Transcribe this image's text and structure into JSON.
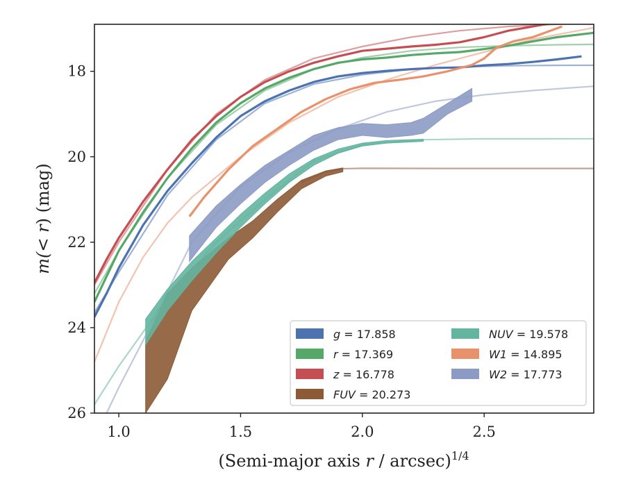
{
  "chart_data": {
    "type": "line",
    "xlabel": "(Semi-major axis r / arcsec)",
    "xlabel_var": "r",
    "xlabel_pre": "(Semi-major axis ",
    "xlabel_post": " / arcsec)",
    "xlabel_exp": "1/4",
    "ylabel_pre": "m(",
    "ylabel_var": "< r",
    "ylabel_post": ") (mag)",
    "xlim": [
      0.9,
      2.95
    ],
    "ylim": [
      26,
      16.9
    ],
    "y_inverted": true,
    "grid": false,
    "legend_position": "lower-right",
    "xticks": [
      1.0,
      1.5,
      2.0,
      2.5
    ],
    "xtick_labels": [
      "1.0",
      "1.5",
      "2.0",
      "2.5"
    ],
    "yticks": [
      18,
      20,
      22,
      24,
      26
    ],
    "ytick_labels": [
      "18",
      "20",
      "22",
      "24",
      "26"
    ],
    "series": [
      {
        "name": "g",
        "legend": "g = 17.858",
        "legend_var": "g",
        "legend_value": "= 17.858",
        "color": "#4c72b0",
        "kind": "line",
        "data": [
          [
            0.9,
            23.75
          ],
          [
            0.95,
            23.2
          ],
          [
            1.0,
            22.6
          ],
          [
            1.1,
            21.6
          ],
          [
            1.2,
            20.8
          ],
          [
            1.3,
            20.15
          ],
          [
            1.4,
            19.55
          ],
          [
            1.5,
            19.05
          ],
          [
            1.6,
            18.7
          ],
          [
            1.7,
            18.45
          ],
          [
            1.8,
            18.25
          ],
          [
            1.9,
            18.12
          ],
          [
            2.0,
            18.04
          ],
          [
            2.1,
            17.99
          ],
          [
            2.2,
            17.95
          ],
          [
            2.3,
            17.92
          ],
          [
            2.4,
            17.91
          ],
          [
            2.5,
            17.86
          ],
          [
            2.6,
            17.83
          ],
          [
            2.7,
            17.78
          ],
          [
            2.8,
            17.72
          ],
          [
            2.9,
            17.65
          ]
        ],
        "model": [
          [
            0.9,
            23.65
          ],
          [
            1.0,
            22.7
          ],
          [
            1.2,
            20.9
          ],
          [
            1.4,
            19.6
          ],
          [
            1.6,
            18.75
          ],
          [
            1.8,
            18.3
          ],
          [
            2.0,
            18.08
          ],
          [
            2.2,
            17.95
          ],
          [
            2.4,
            17.9
          ],
          [
            2.6,
            17.87
          ],
          [
            2.8,
            17.86
          ],
          [
            2.95,
            17.858
          ]
        ]
      },
      {
        "name": "r",
        "legend": "r = 17.369",
        "legend_var": "r",
        "legend_value": "= 17.369",
        "color": "#55a868",
        "kind": "line",
        "data": [
          [
            0.9,
            23.4
          ],
          [
            0.95,
            22.8
          ],
          [
            1.0,
            22.2
          ],
          [
            1.1,
            21.3
          ],
          [
            1.2,
            20.5
          ],
          [
            1.3,
            19.8
          ],
          [
            1.4,
            19.2
          ],
          [
            1.5,
            18.75
          ],
          [
            1.6,
            18.4
          ],
          [
            1.7,
            18.15
          ],
          [
            1.8,
            17.95
          ],
          [
            1.9,
            17.8
          ],
          [
            2.0,
            17.72
          ],
          [
            2.1,
            17.68
          ],
          [
            2.2,
            17.62
          ],
          [
            2.3,
            17.58
          ],
          [
            2.4,
            17.55
          ],
          [
            2.5,
            17.48
          ],
          [
            2.6,
            17.4
          ],
          [
            2.7,
            17.3
          ],
          [
            2.8,
            17.2
          ],
          [
            2.95,
            17.1
          ]
        ],
        "model": [
          [
            0.9,
            23.2
          ],
          [
            1.0,
            22.2
          ],
          [
            1.2,
            20.5
          ],
          [
            1.4,
            19.25
          ],
          [
            1.6,
            18.45
          ],
          [
            1.8,
            17.95
          ],
          [
            2.0,
            17.68
          ],
          [
            2.2,
            17.52
          ],
          [
            2.4,
            17.44
          ],
          [
            2.6,
            17.4
          ],
          [
            2.8,
            17.38
          ],
          [
            2.95,
            17.369
          ]
        ]
      },
      {
        "name": "z",
        "legend": "z = 16.778",
        "legend_var": "z",
        "legend_value": "= 16.778",
        "color": "#c44e52",
        "kind": "line",
        "data": [
          [
            0.9,
            22.95
          ],
          [
            0.95,
            22.4
          ],
          [
            1.0,
            21.9
          ],
          [
            1.1,
            21.05
          ],
          [
            1.2,
            20.3
          ],
          [
            1.3,
            19.6
          ],
          [
            1.4,
            19.05
          ],
          [
            1.5,
            18.6
          ],
          [
            1.6,
            18.25
          ],
          [
            1.7,
            18.0
          ],
          [
            1.8,
            17.8
          ],
          [
            1.9,
            17.65
          ],
          [
            2.0,
            17.52
          ],
          [
            2.1,
            17.47
          ],
          [
            2.2,
            17.42
          ],
          [
            2.3,
            17.38
          ],
          [
            2.4,
            17.32
          ],
          [
            2.5,
            17.2
          ],
          [
            2.6,
            17.05
          ],
          [
            2.7,
            16.95
          ],
          [
            2.8,
            16.85
          ],
          [
            2.88,
            16.78
          ]
        ],
        "model": [
          [
            0.9,
            23.0
          ],
          [
            1.0,
            22.0
          ],
          [
            1.2,
            20.3
          ],
          [
            1.4,
            19.0
          ],
          [
            1.6,
            18.2
          ],
          [
            1.8,
            17.7
          ],
          [
            2.0,
            17.42
          ],
          [
            2.2,
            17.2
          ],
          [
            2.4,
            17.05
          ],
          [
            2.6,
            16.95
          ],
          [
            2.8,
            16.9
          ],
          [
            2.95,
            16.88
          ]
        ]
      },
      {
        "name": "FUV",
        "legend": "FUV = 20.273",
        "legend_var": "FUV",
        "legend_value": "= 20.273",
        "color": "#8c5a36",
        "kind": "band",
        "band": [
          [
            1.11,
            24.3,
            26.0
          ],
          [
            1.2,
            23.2,
            25.2
          ],
          [
            1.3,
            22.6,
            23.6
          ],
          [
            1.45,
            21.9,
            22.4
          ],
          [
            1.55,
            21.5,
            21.9
          ],
          [
            1.65,
            21.0,
            21.3
          ],
          [
            1.75,
            20.55,
            20.75
          ],
          [
            1.85,
            20.33,
            20.45
          ],
          [
            1.92,
            20.26,
            20.35
          ]
        ],
        "model": [
          [
            1.75,
            20.6
          ],
          [
            1.85,
            20.35
          ],
          [
            1.92,
            20.28
          ],
          [
            2.0,
            20.27
          ],
          [
            2.3,
            20.273
          ],
          [
            2.95,
            20.273
          ]
        ]
      },
      {
        "name": "NUV",
        "legend": "NUV = 19.578",
        "legend_var": "NUV",
        "legend_value": "= 19.578",
        "color": "#64b5a0",
        "kind": "band",
        "band": [
          [
            1.11,
            23.8,
            24.4
          ],
          [
            1.2,
            23.1,
            23.6
          ],
          [
            1.3,
            22.45,
            22.9
          ],
          [
            1.4,
            21.9,
            22.25
          ],
          [
            1.5,
            21.35,
            21.65
          ],
          [
            1.6,
            20.85,
            21.1
          ],
          [
            1.7,
            20.4,
            20.6
          ],
          [
            1.8,
            20.05,
            20.2
          ],
          [
            1.9,
            19.82,
            19.92
          ],
          [
            2.0,
            19.68,
            19.75
          ],
          [
            2.1,
            19.62,
            19.68
          ],
          [
            2.25,
            19.59,
            19.64
          ]
        ],
        "model": [
          [
            0.9,
            25.8
          ],
          [
            1.0,
            24.9
          ],
          [
            1.2,
            23.3
          ],
          [
            1.4,
            22.0
          ],
          [
            1.6,
            21.0
          ],
          [
            1.8,
            20.1
          ],
          [
            2.0,
            19.72
          ],
          [
            2.25,
            19.6
          ],
          [
            2.5,
            19.58
          ],
          [
            2.95,
            19.578
          ]
        ]
      },
      {
        "name": "W1",
        "legend": "W1 = 14.895",
        "legend_var": "W1",
        "legend_value": "= 14.895",
        "color": "#e8916b",
        "kind": "line",
        "data": [
          [
            1.29,
            21.4
          ],
          [
            1.35,
            20.95
          ],
          [
            1.45,
            20.3
          ],
          [
            1.55,
            19.75
          ],
          [
            1.65,
            19.35
          ],
          [
            1.75,
            18.95
          ],
          [
            1.85,
            18.65
          ],
          [
            1.95,
            18.42
          ],
          [
            2.05,
            18.27
          ],
          [
            2.15,
            18.2
          ],
          [
            2.25,
            18.12
          ],
          [
            2.35,
            18.0
          ],
          [
            2.45,
            17.85
          ],
          [
            2.5,
            17.7
          ],
          [
            2.55,
            17.45
          ],
          [
            2.62,
            17.3
          ],
          [
            2.7,
            17.2
          ],
          [
            2.82,
            16.95
          ]
        ],
        "model": [
          [
            0.9,
            24.8
          ],
          [
            1.0,
            23.4
          ],
          [
            1.1,
            22.35
          ],
          [
            1.2,
            21.55
          ],
          [
            1.3,
            20.95
          ],
          [
            1.5,
            20.0
          ],
          [
            1.7,
            19.2
          ],
          [
            1.9,
            18.6
          ],
          [
            2.1,
            18.2
          ],
          [
            2.3,
            17.85
          ],
          [
            2.5,
            17.55
          ],
          [
            2.7,
            17.25
          ],
          [
            2.95,
            16.98
          ]
        ]
      },
      {
        "name": "W2",
        "legend": "W2 = 17.773",
        "legend_var": "W2",
        "legend_value": "= 17.773",
        "color": "#8c9bc4",
        "kind": "band",
        "band": [
          [
            1.29,
            21.85,
            22.45
          ],
          [
            1.4,
            21.15,
            21.65
          ],
          [
            1.5,
            20.65,
            21.1
          ],
          [
            1.6,
            20.2,
            20.6
          ],
          [
            1.7,
            19.85,
            20.2
          ],
          [
            1.8,
            19.5,
            19.85
          ],
          [
            1.9,
            19.32,
            19.6
          ],
          [
            2.0,
            19.22,
            19.5
          ],
          [
            2.1,
            19.25,
            19.55
          ],
          [
            2.2,
            19.2,
            19.5
          ],
          [
            2.25,
            19.1,
            19.45
          ],
          [
            2.35,
            18.75,
            19.0
          ],
          [
            2.45,
            18.4,
            18.7
          ]
        ],
        "model": [
          [
            0.95,
            26.0
          ],
          [
            1.0,
            25.4
          ],
          [
            1.1,
            24.3
          ],
          [
            1.3,
            22.0
          ],
          [
            1.5,
            20.7
          ],
          [
            1.7,
            19.9
          ],
          [
            1.9,
            19.35
          ],
          [
            2.1,
            18.95
          ],
          [
            2.3,
            18.7
          ],
          [
            2.5,
            18.55
          ],
          [
            2.7,
            18.45
          ],
          [
            2.95,
            18.35
          ]
        ]
      }
    ],
    "legend_layout": [
      [
        "g",
        "FUV"
      ],
      [
        "r",
        "NUV"
      ],
      [
        "z",
        "W1"
      ],
      [
        "FUV",
        "W2"
      ]
    ]
  }
}
